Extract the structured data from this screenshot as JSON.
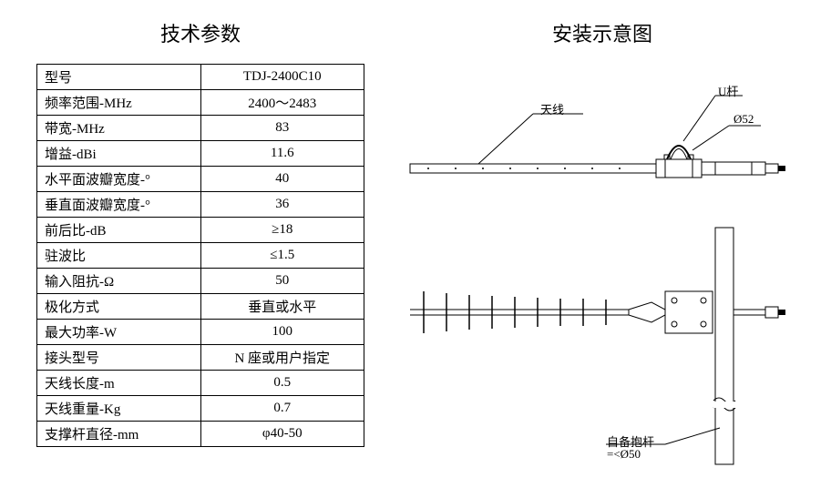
{
  "titles": {
    "left": "技术参数",
    "right": "安装示意图"
  },
  "spec_table": {
    "rows": [
      {
        "label": "型号",
        "value": "TDJ-2400C10"
      },
      {
        "label": "频率范围-MHz",
        "value": "2400～2483"
      },
      {
        "label": "带宽-MHz",
        "value": "83"
      },
      {
        "label": "增益-dBi",
        "value": "11.6"
      },
      {
        "label": "水平面波瓣宽度-°",
        "value": "40"
      },
      {
        "label": "垂直面波瓣宽度-°",
        "value": "36"
      },
      {
        "label": "前后比-dB",
        "value": "≥18"
      },
      {
        "label": "驻波比",
        "value": "≤1.5"
      },
      {
        "label": "输入阻抗-Ω",
        "value": "50"
      },
      {
        "label": "极化方式",
        "value": "垂直或水平"
      },
      {
        "label": "最大功率-W",
        "value": "100"
      },
      {
        "label": "接头型号",
        "value": "N 座或用户指定"
      },
      {
        "label": "天线长度-m",
        "value": "0.5"
      },
      {
        "label": "天线重量-Kg",
        "value": "0.7"
      },
      {
        "label": "支撑杆直径-mm",
        "value": "φ40-50"
      }
    ]
  },
  "diagram": {
    "labels": {
      "antenna": "天线",
      "ubolt": "U杆",
      "diameter_top": "Ø52",
      "self_pole": "自备抱杆",
      "self_pole_note": "=<Ø50"
    },
    "colors": {
      "stroke": "#000000",
      "fill_none": "none",
      "bg": "#ffffff"
    },
    "stroke_width": 1,
    "font_size_label": 13
  }
}
